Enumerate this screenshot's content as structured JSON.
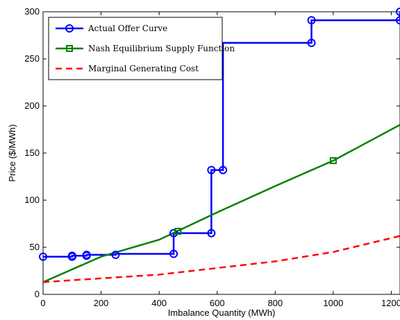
{
  "chart_data": {
    "type": "line",
    "xlabel": "Imbalance Quantity (MWh)",
    "ylabel": "Price ($/MWh)",
    "xlim": [
      0,
      1230
    ],
    "ylim": [
      0,
      300
    ],
    "x_ticks": [
      0,
      200,
      400,
      600,
      800,
      1000,
      1200
    ],
    "y_ticks": [
      0,
      50,
      100,
      150,
      200,
      250,
      300
    ],
    "legend_position": "top-left",
    "series": [
      {
        "name": "Actual Offer Curve",
        "color": "#0000ff",
        "style": "solid",
        "marker": "circle",
        "x": [
          0,
          100,
          100,
          100,
          150,
          150,
          250,
          250,
          450,
          450,
          580,
          580,
          620,
          620,
          925,
          925,
          1230,
          1230
        ],
        "y": [
          40,
          40,
          41,
          41,
          41,
          42,
          42,
          43,
          43,
          65,
          65,
          132,
          132,
          267,
          267,
          291,
          291,
          300
        ],
        "marker_points": [
          [
            0,
            40
          ],
          [
            100,
            40
          ],
          [
            100,
            41
          ],
          [
            150,
            41
          ],
          [
            150,
            42
          ],
          [
            250,
            42
          ],
          [
            450,
            43
          ],
          [
            450,
            65
          ],
          [
            580,
            65
          ],
          [
            580,
            132
          ],
          [
            620,
            132
          ],
          [
            925,
            267
          ],
          [
            925,
            291
          ],
          [
            1230,
            291
          ],
          [
            1230,
            300
          ]
        ]
      },
      {
        "name": "Nash Equilibrium Supply Function",
        "color": "#008000",
        "style": "solid",
        "marker": "square",
        "x": [
          0,
          200,
          400,
          600,
          800,
          1000,
          1230
        ],
        "y": [
          13,
          40,
          58,
          87,
          115,
          142,
          180
        ],
        "marker_points": [
          [
            465,
            67
          ],
          [
            1000,
            142
          ]
        ]
      },
      {
        "name": "Marginal Generating Cost",
        "color": "#ff0000",
        "style": "dashed",
        "marker": "none",
        "x": [
          0,
          200,
          400,
          600,
          800,
          1000,
          1230
        ],
        "y": [
          13,
          17,
          21,
          28,
          35,
          45,
          62
        ]
      }
    ]
  }
}
